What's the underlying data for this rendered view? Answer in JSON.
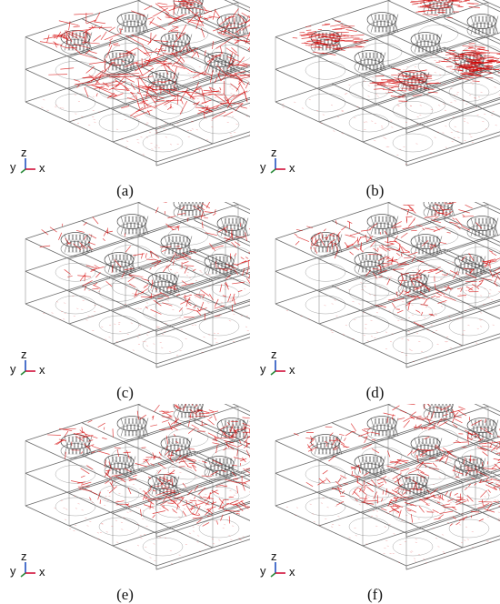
{
  "figure": {
    "panels": [
      {
        "id": "a",
        "caption": "(a)",
        "axes": {
          "y": "y",
          "z": "z",
          "x": "x"
        },
        "intensity": 0.95,
        "style": "arrows-chaotic"
      },
      {
        "id": "b",
        "caption": "(b)",
        "axes": {
          "y": "y",
          "z": "z",
          "x": "x"
        },
        "intensity": 0.9,
        "style": "blobs-top"
      },
      {
        "id": "c",
        "caption": "(c)",
        "axes": {
          "y": "y",
          "z": "z",
          "x": "x"
        },
        "intensity": 0.5,
        "style": "arrows-sparse"
      },
      {
        "id": "d",
        "caption": "(d)",
        "axes": {
          "y": "y",
          "z": "z",
          "x": "x"
        },
        "intensity": 0.7,
        "style": "blobs-mid"
      },
      {
        "id": "e",
        "caption": "(e)",
        "axes": {
          "y": "y",
          "z": "z",
          "x": "x"
        },
        "intensity": 0.85,
        "style": "arrows-dense"
      },
      {
        "id": "f",
        "caption": "(f)",
        "axes": {
          "y": "y",
          "z": "z",
          "x": "x"
        },
        "intensity": 0.85,
        "style": "arrows-dense"
      }
    ],
    "colors": {
      "vectors": "#d40000",
      "wireframe": "#6a6a6a",
      "mesh": "#333333",
      "axis_x": "#d0103a",
      "axis_y": "#2a8a3a",
      "axis_z": "#2050c0"
    }
  }
}
